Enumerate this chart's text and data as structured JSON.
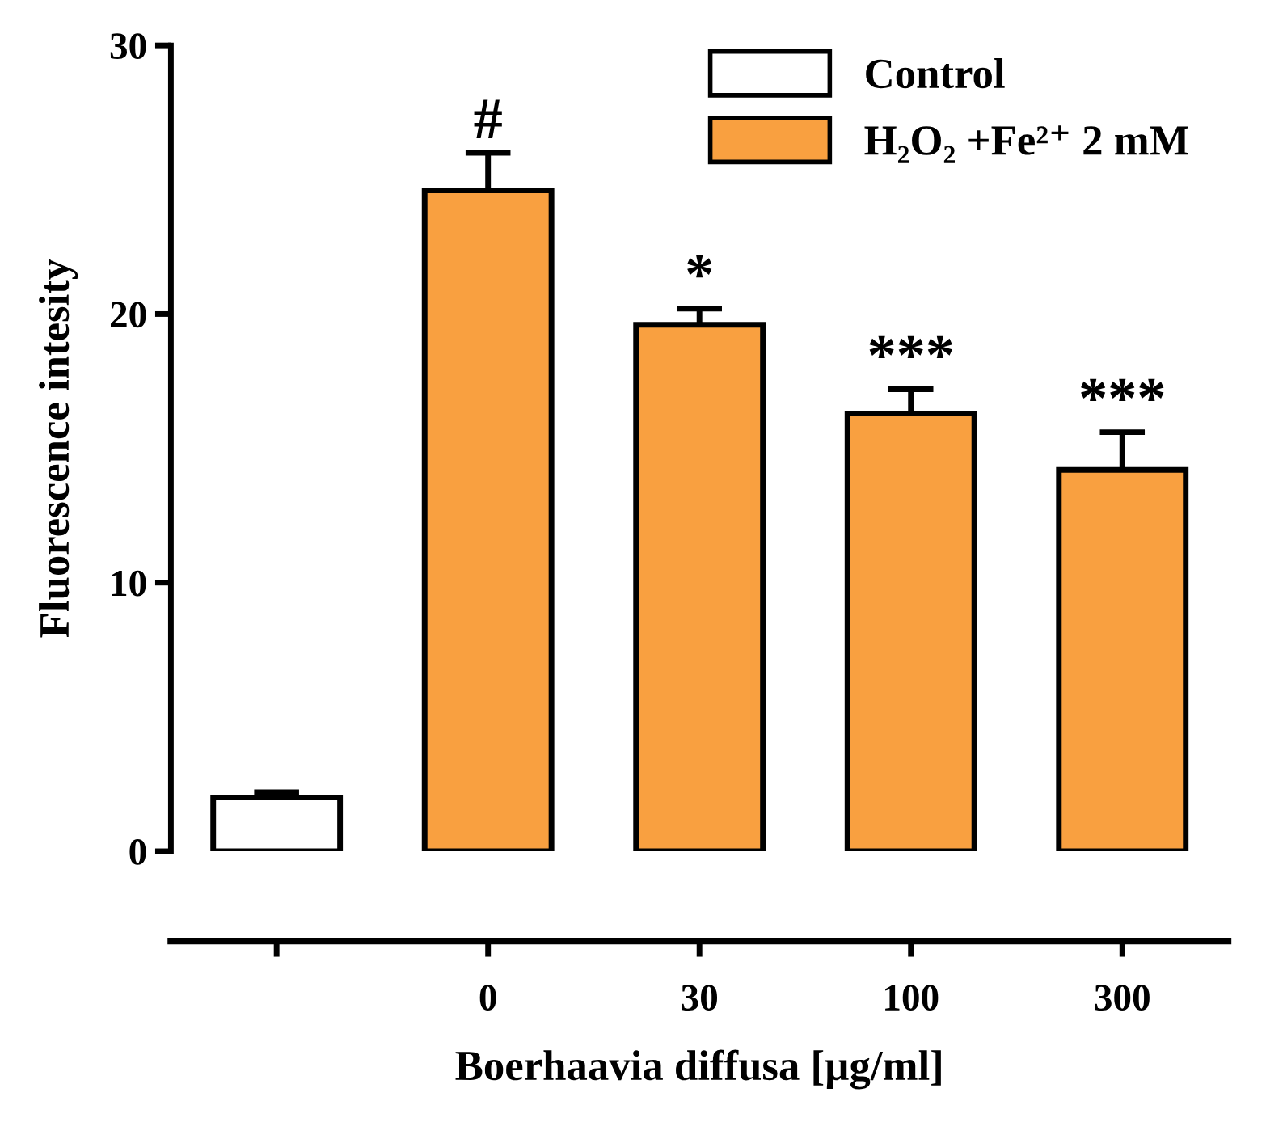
{
  "chart_data": {
    "type": "bar",
    "ylabel": "Fluorescence intesity",
    "xlabel": "Boerhaavia diffusa [µg/ml]",
    "categories": [
      null,
      "0",
      "30",
      "100",
      "300"
    ],
    "series": [
      {
        "name": "Control",
        "color": "#ffffff",
        "values": [
          2.0,
          null,
          null,
          null,
          null
        ],
        "errors": [
          0.2,
          null,
          null,
          null,
          null
        ]
      },
      {
        "name": "H₂O₂ +Fe²⁺ 2 mM",
        "color": "#f9a040",
        "values": [
          null,
          24.6,
          19.6,
          16.3,
          14.2
        ],
        "errors": [
          null,
          1.4,
          0.6,
          0.9,
          1.4
        ]
      }
    ],
    "ylim": [
      0,
      30
    ],
    "yticks": [
      0,
      10,
      20,
      30
    ],
    "grid": false,
    "legend": "top right",
    "annotations": [
      "#",
      "*",
      "***",
      "***"
    ]
  }
}
